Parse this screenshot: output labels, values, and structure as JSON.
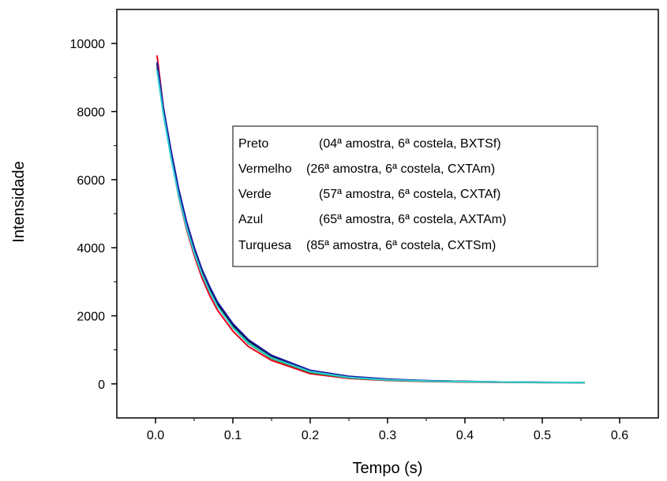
{
  "chart_data": {
    "type": "line",
    "title": "",
    "xlabel": "Tempo (s)",
    "ylabel": "Intensidade",
    "xlim": [
      -0.05,
      0.65
    ],
    "ylim": [
      -1000,
      11000
    ],
    "xticks": [
      0.0,
      0.1,
      0.2,
      0.3,
      0.4,
      0.5,
      0.6
    ],
    "xtick_labels": [
      "0.0",
      "0.1",
      "0.2",
      "0.3",
      "0.4",
      "0.5",
      "0.6"
    ],
    "yticks": [
      0,
      2000,
      4000,
      6000,
      8000,
      10000
    ],
    "ytick_labels": [
      "0",
      "2000",
      "4000",
      "6000",
      "8000",
      "10000"
    ],
    "grid": false,
    "legend_position": "center-right",
    "legend": [
      {
        "name": "Preto",
        "desc": "(04ª amostra, 6ª costela, BXTSf)"
      },
      {
        "name": "Vermelho",
        "desc": "(26ª amostra, 6ª costela, CXTAm)"
      },
      {
        "name": "Verde",
        "desc": "(57ª amostra, 6ª costela, CXTAf)"
      },
      {
        "name": "Azul",
        "desc": "(65ª amostra, 6ª costela, AXTAm)"
      },
      {
        "name": "Turquesa",
        "desc": "(85ª amostra, 6ª costela, CXTSm)"
      }
    ],
    "series": [
      {
        "color": "#000000",
        "x": [
          0.002,
          0.01,
          0.02,
          0.03,
          0.04,
          0.05,
          0.06,
          0.07,
          0.08,
          0.1,
          0.12,
          0.15,
          0.2,
          0.25,
          0.3,
          0.35,
          0.4,
          0.45,
          0.5,
          0.555
        ],
        "y": [
          9400,
          8100,
          6800,
          5650,
          4700,
          3950,
          3300,
          2800,
          2350,
          1720,
          1250,
          800,
          380,
          210,
          130,
          90,
          70,
          55,
          45,
          40
        ]
      },
      {
        "color": "#e8001c",
        "x": [
          0.002,
          0.01,
          0.02,
          0.03,
          0.04,
          0.05,
          0.06,
          0.07,
          0.08,
          0.1,
          0.12,
          0.15,
          0.2,
          0.25,
          0.3,
          0.35,
          0.4,
          0.45,
          0.5,
          0.555
        ],
        "y": [
          9650,
          8150,
          6700,
          5500,
          4550,
          3780,
          3120,
          2600,
          2170,
          1550,
          1100,
          690,
          300,
          160,
          100,
          70,
          55,
          45,
          40,
          35
        ]
      },
      {
        "color": "#1a9a50",
        "x": [
          0.002,
          0.01,
          0.02,
          0.03,
          0.04,
          0.05,
          0.06,
          0.07,
          0.08,
          0.1,
          0.12,
          0.15,
          0.2,
          0.25,
          0.3,
          0.35,
          0.4,
          0.45,
          0.5,
          0.555
        ],
        "y": [
          9300,
          8000,
          6700,
          5560,
          4640,
          3880,
          3240,
          2730,
          2290,
          1650,
          1190,
          750,
          340,
          180,
          110,
          80,
          60,
          50,
          40,
          35
        ]
      },
      {
        "color": "#1a1aa6",
        "x": [
          0.002,
          0.01,
          0.02,
          0.03,
          0.04,
          0.05,
          0.06,
          0.07,
          0.08,
          0.1,
          0.12,
          0.15,
          0.2,
          0.25,
          0.3,
          0.35,
          0.4,
          0.45,
          0.5,
          0.555
        ],
        "y": [
          9450,
          8150,
          6870,
          5720,
          4780,
          4020,
          3370,
          2860,
          2410,
          1770,
          1300,
          840,
          400,
          220,
          140,
          95,
          70,
          55,
          45,
          40
        ]
      },
      {
        "color": "#2fd0d0",
        "x": [
          0.002,
          0.01,
          0.02,
          0.03,
          0.04,
          0.05,
          0.06,
          0.07,
          0.08,
          0.1,
          0.12,
          0.15,
          0.2,
          0.25,
          0.3,
          0.35,
          0.4,
          0.45,
          0.5,
          0.555
        ],
        "y": [
          9200,
          7950,
          6650,
          5520,
          4600,
          3850,
          3220,
          2710,
          2280,
          1660,
          1210,
          770,
          360,
          190,
          120,
          85,
          65,
          55,
          45,
          40
        ]
      }
    ]
  }
}
